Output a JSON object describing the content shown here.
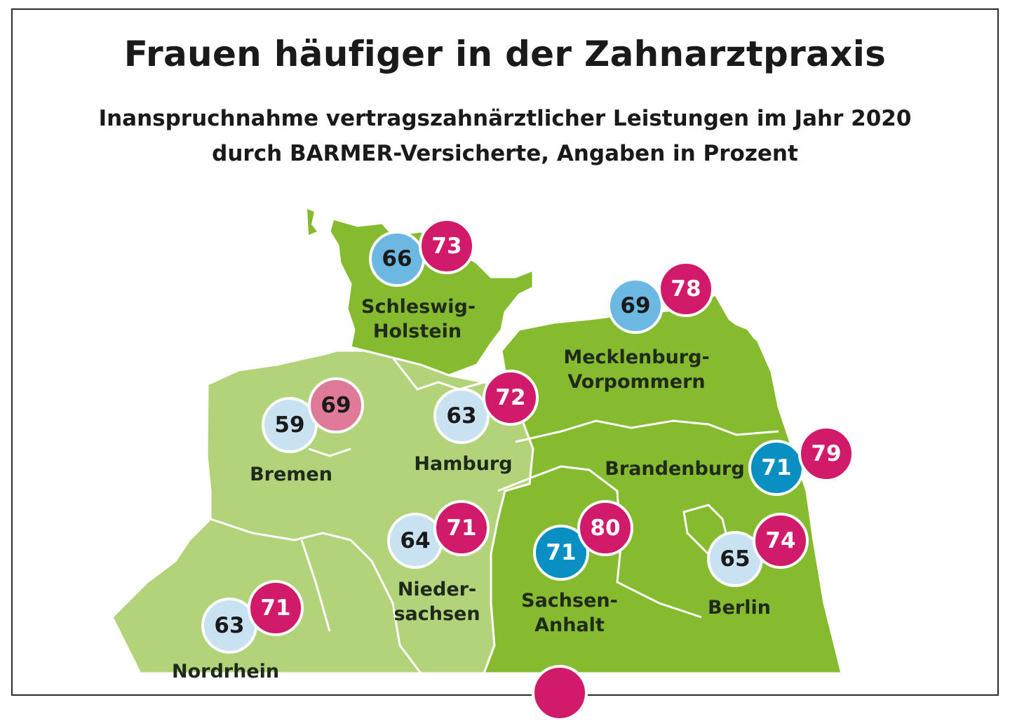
{
  "title": "Frauen häufiger in der Zahnarztpraxis",
  "subtitle_line1": "Inanspruchnahme vertragszahnärztlicher Leistungen im Jahr 2020",
  "subtitle_line2": "durch BARMER-Versicherte, Angaben in Prozent",
  "colors": {
    "west_green": "#b3d37a",
    "east_green": "#86bb2f",
    "border": "#ffffff",
    "men_light": "#c9e2f2",
    "men_mid": "#6cb8e2",
    "men_dark": "#0a8fc2",
    "women": "#d11a6a",
    "women_light": "#df7b98"
  },
  "regions": {
    "schleswig_holstein": {
      "label_1": "Schleswig-",
      "label_2": "Holstein",
      "men": "66",
      "women": "73"
    },
    "mecklenburg_vorpommern": {
      "label_1": "Mecklenburg-",
      "label_2": "Vorpommern",
      "men": "69",
      "women": "78"
    },
    "bremen": {
      "label": "Bremen",
      "men": "59",
      "women": "69"
    },
    "hamburg": {
      "label": "Hamburg",
      "men": "63",
      "women": "72"
    },
    "brandenburg": {
      "label": "Brandenburg",
      "men": "71",
      "women": "79"
    },
    "niedersachsen": {
      "label_1": "Nieder-",
      "label_2": "sachsen",
      "men": "64",
      "women": "71"
    },
    "sachsen_anhalt": {
      "label_1": "Sachsen-",
      "label_2": "Anhalt",
      "men": "71",
      "women": "80"
    },
    "berlin": {
      "label": "Berlin",
      "men": "65",
      "women": "74"
    },
    "nordrhein": {
      "label": "Nordrhein",
      "men": "63",
      "women": "71"
    }
  }
}
